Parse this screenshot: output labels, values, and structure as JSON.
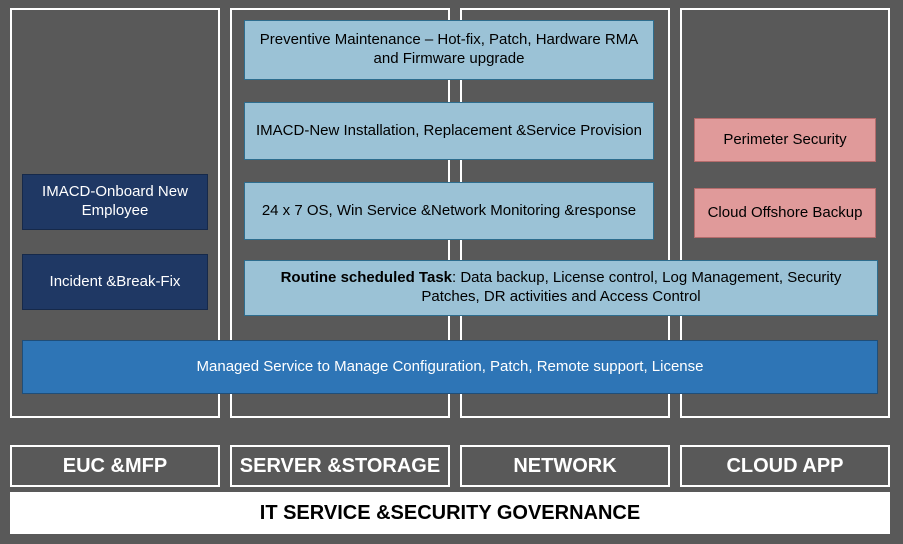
{
  "colors": {
    "background": "#595959",
    "frame_border": "#ffffff",
    "navy_fill": "#1f3864",
    "lightblue_fill": "#9bc2d6",
    "pink_fill": "#e09a9a",
    "blue_fill": "#2e75b6",
    "text_dark": "#000000",
    "text_light": "#ffffff"
  },
  "columns": [
    {
      "id": "euc",
      "label": "EUC &MFP"
    },
    {
      "id": "server",
      "label": "SERVER &STORAGE"
    },
    {
      "id": "network",
      "label": "NETWORK"
    },
    {
      "id": "cloud",
      "label": "CLOUD APP"
    }
  ],
  "boxes": {
    "onboard": {
      "text": "IMACD-Onboard New Employee",
      "style": "navy"
    },
    "incident": {
      "text": "Incident &Break-Fix",
      "style": "navy"
    },
    "prev": {
      "text": "Preventive Maintenance – Hot-fix, Patch, Hardware RMA and Firmware upgrade",
      "style": "lightblue"
    },
    "imacd": {
      "text": "IMACD-New Installation, Replacement &Service Provision",
      "style": "lightblue"
    },
    "mon": {
      "text": "24 x 7 OS, Win Service &Network Monitoring &response",
      "style": "lightblue"
    },
    "routine_label": "Routine scheduled Task",
    "routine_rest": ": Data backup, License control, Log Management, Security Patches, DR activities and Access Control",
    "managed": {
      "text": "Managed Service to Manage Configuration, Patch, Remote support, License",
      "style": "blue"
    },
    "perimeter": {
      "text": "Perimeter Security",
      "style": "pink"
    },
    "offshore": {
      "text": "Cloud Offshore Backup",
      "style": "pink"
    }
  },
  "governance": "IT SERVICE &SECURITY GOVERNANCE",
  "typography": {
    "box_fontsize": 15,
    "category_fontsize": 20,
    "governance_fontsize": 20
  }
}
